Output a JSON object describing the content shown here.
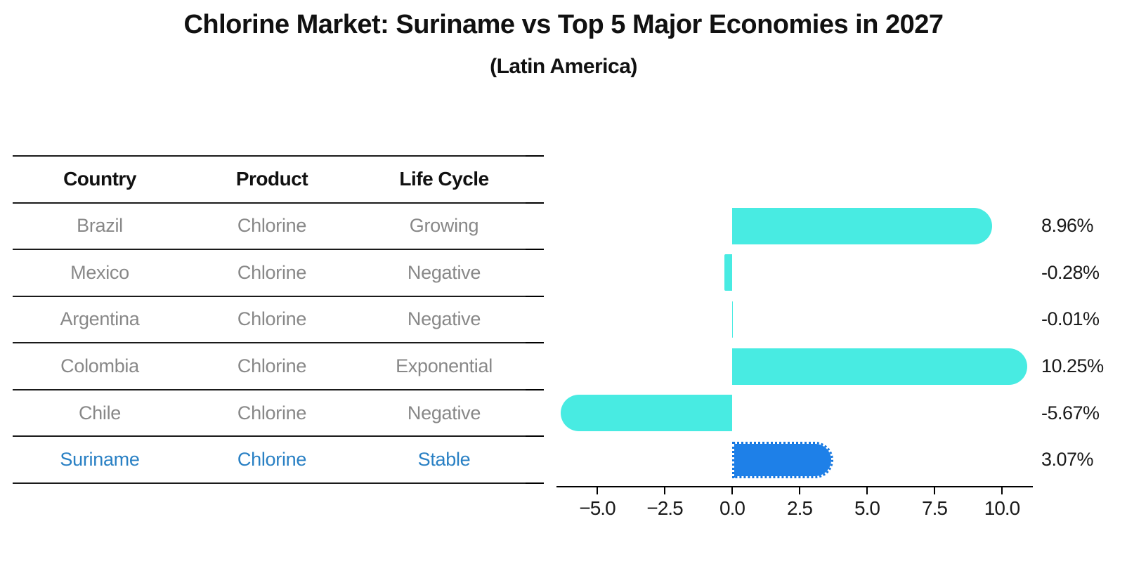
{
  "title": "Chlorine Market: Suriname vs Top 5 Major Economies in 2027",
  "subtitle": "(Latin America)",
  "table": {
    "headers": [
      "Country",
      "Product",
      "Life Cycle"
    ],
    "rows": [
      {
        "country": "Brazil",
        "product": "Chlorine",
        "life_cycle": "Growing",
        "highlight": false
      },
      {
        "country": "Mexico",
        "product": "Chlorine",
        "life_cycle": "Negative",
        "highlight": false
      },
      {
        "country": "Argentina",
        "product": "Chlorine",
        "life_cycle": "Negative",
        "highlight": false
      },
      {
        "country": "Colombia",
        "product": "Chlorine",
        "life_cycle": "Exponential",
        "highlight": false
      },
      {
        "country": "Chile",
        "product": "Chlorine",
        "life_cycle": "Negative",
        "highlight": false
      },
      {
        "country": "Suriname",
        "product": "Chlorine",
        "life_cycle": "Stable",
        "highlight": true
      }
    ]
  },
  "chart_data": {
    "type": "bar",
    "orientation": "horizontal",
    "title": "Chlorine Market: Suriname vs Top 5 Major Economies in 2027",
    "subtitle": "(Latin America)",
    "categories": [
      "Brazil",
      "Mexico",
      "Argentina",
      "Colombia",
      "Chile",
      "Suriname"
    ],
    "values": [
      8.96,
      -0.28,
      -0.01,
      10.25,
      -5.67,
      3.07
    ],
    "value_labels": [
      "8.96%",
      "-0.28%",
      "-0.01%",
      "10.25%",
      "-5.67%",
      "3.07%"
    ],
    "highlight_index": 5,
    "xlabel": "",
    "ylabel": "",
    "xlim": [
      -6.5,
      11.15
    ],
    "xticks": [
      -5.0,
      -2.5,
      0.0,
      2.5,
      5.0,
      7.5,
      10.0
    ],
    "xtick_labels": [
      "−5.0",
      "−2.5",
      "0.0",
      "2.5",
      "5.0",
      "7.5",
      "10.0"
    ],
    "grid": false,
    "legend": false,
    "colors": {
      "bar": "#48EBE2",
      "highlight_bar": "#1E80E8",
      "highlight_bar_edge": "#1677E0",
      "highlight_text": "#2980C4",
      "cell_text": "#888888",
      "header_text": "#111111",
      "axis": "#000000"
    }
  }
}
